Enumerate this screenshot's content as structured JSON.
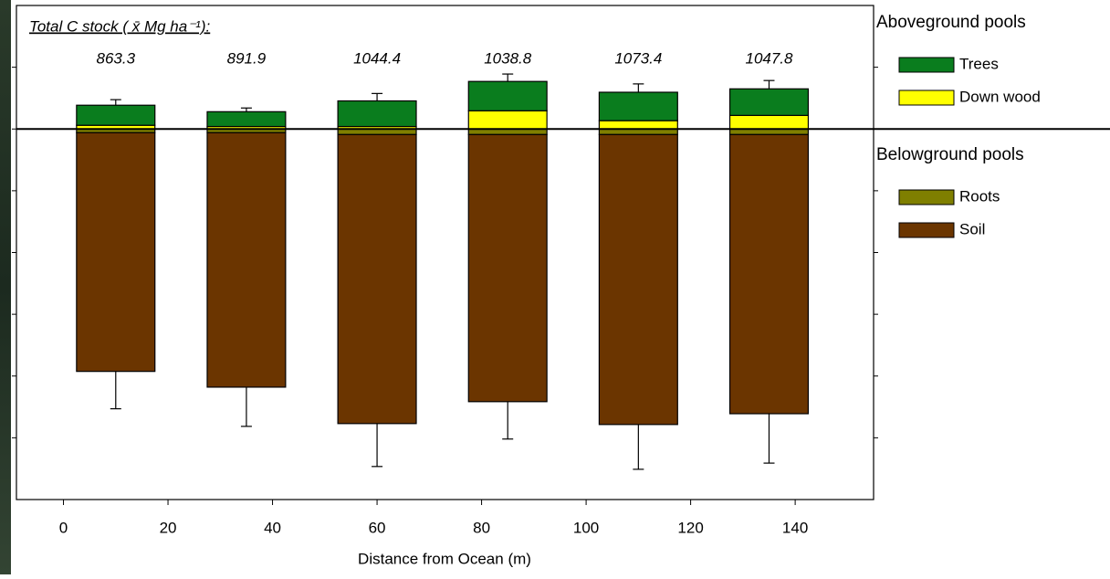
{
  "chart_data": {
    "type": "stacked_bar",
    "annotation_title": "Total C stock  ( x̄ Mg ha⁻¹):",
    "x_label": "Distance from Ocean  (m)",
    "x": [
      10,
      35,
      60,
      85,
      110,
      135
    ],
    "bar_width": 15,
    "totals": [
      863.3,
      891.9,
      1044.4,
      1038.8,
      1073.4,
      1047.8
    ],
    "series_groups": [
      {
        "name": "Aboveground pools",
        "series": [
          {
            "name": "Trees",
            "color": "#0a7d1e",
            "values": [
              65,
              48,
              83,
              95,
              92,
              86
            ],
            "errors": [
              18,
              12,
              24,
              24,
              27,
              27
            ]
          },
          {
            "name": "Down wood",
            "color": "#ffff00",
            "values": [
              12,
              8,
              8,
              59,
              27,
              44
            ],
            "errors": [
              6,
              6,
              4,
              30,
              6,
              21
            ]
          }
        ]
      },
      {
        "name": "Belowground pools",
        "series": [
          {
            "name": "Roots",
            "color": "#7f7f00",
            "values": [
              -12,
              -12,
              -18,
              -18,
              -18,
              -18
            ],
            "errors": [
              4,
              4,
              4,
              4,
              6,
              4
            ]
          },
          {
            "name": "Soil",
            "color": "#6b3500",
            "values": [
              -773,
              -824,
              -936,
              -865,
              -939,
              -904
            ],
            "errors": [
              121,
              127,
              139,
              121,
              145,
              160
            ]
          }
        ]
      }
    ],
    "xlim": [
      -9,
      155
    ],
    "xticks": [
      0,
      20,
      40,
      60,
      80,
      100,
      120,
      140
    ],
    "ylim": [
      -1200,
      400
    ],
    "yticks": [
      -1000,
      -800,
      -600,
      -400,
      -200,
      0,
      200
    ]
  }
}
